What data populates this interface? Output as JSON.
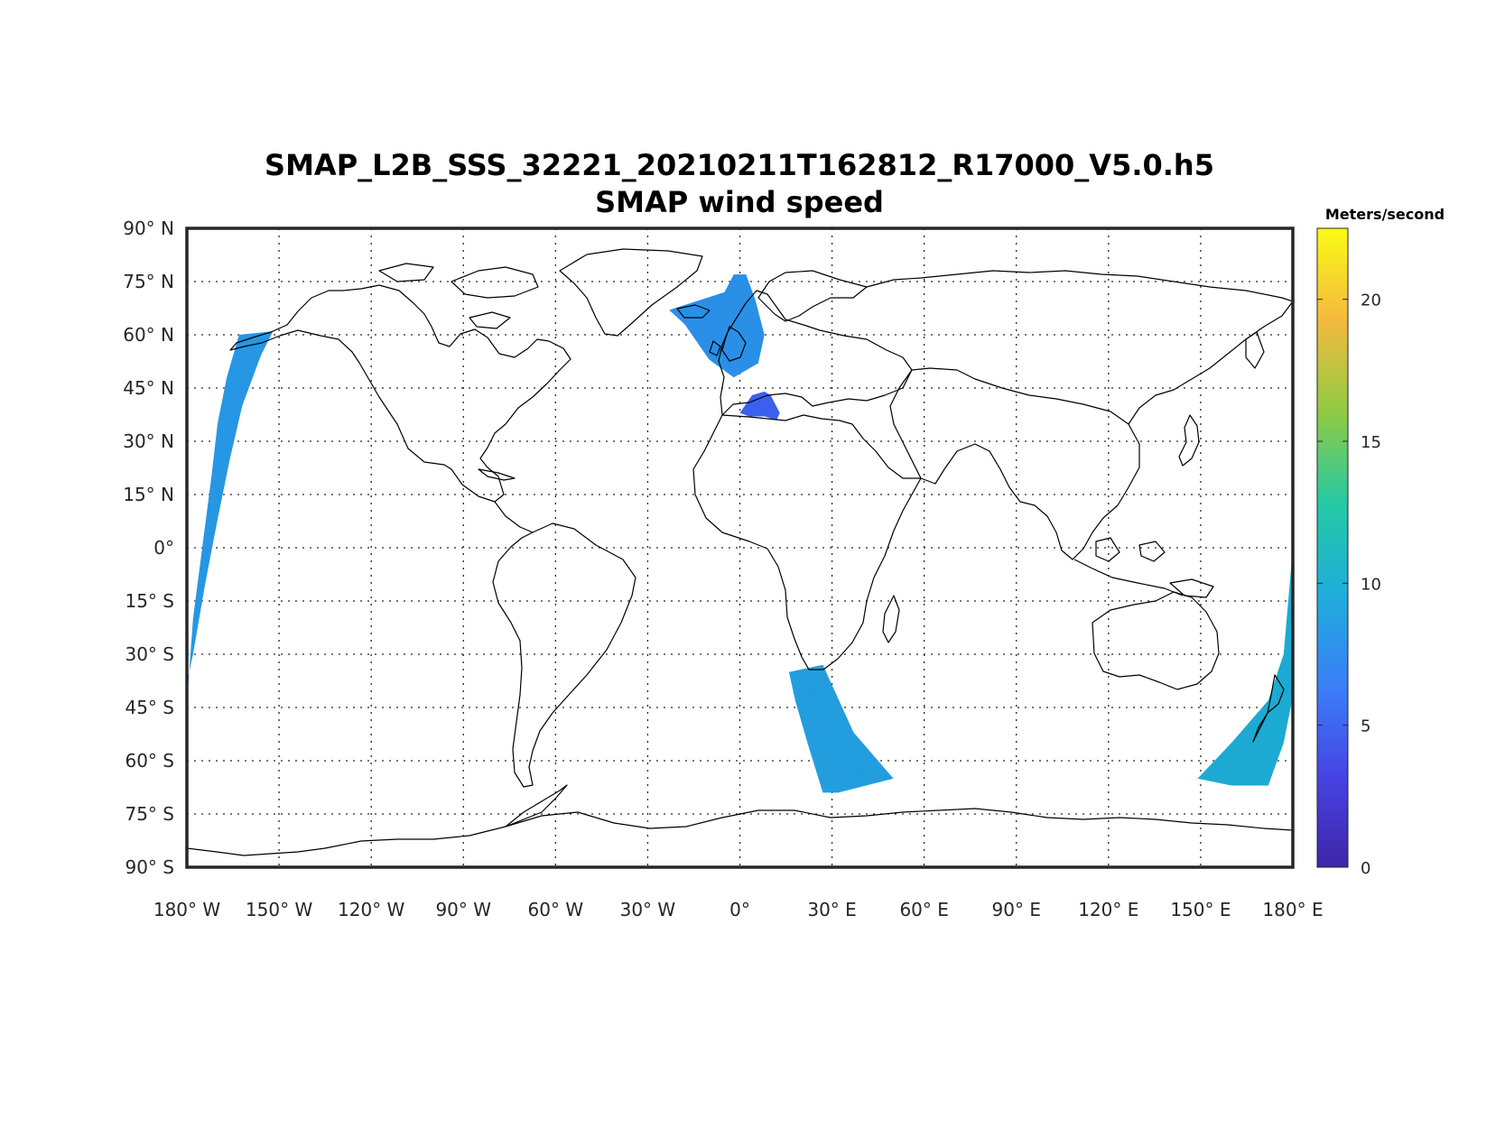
{
  "title": {
    "line1": "SMAP_L2B_SSS_32221_20210211T162812_R17000_V5.0.h5",
    "line2": "SMAP wind speed"
  },
  "colorbar": {
    "unit_label": "Meters/second",
    "ticks": [
      {
        "value": 0,
        "label": "0"
      },
      {
        "value": 5,
        "label": "5"
      },
      {
        "value": 10,
        "label": "10"
      },
      {
        "value": 15,
        "label": "15"
      },
      {
        "value": 20,
        "label": "20"
      }
    ],
    "min": 0,
    "max": 22.5,
    "colors": [
      "#3e26a8",
      "#4743e3",
      "#3a7ef8",
      "#1faeda",
      "#25c9a3",
      "#8fcb45",
      "#f6ba3d",
      "#f9fb14"
    ]
  },
  "chart_data": {
    "type": "heatmap",
    "projection": "equirectangular",
    "lon_range": [
      -180,
      180
    ],
    "lat_range": [
      -90,
      90
    ],
    "grid": true,
    "x_ticks": [
      {
        "value": -180,
        "label": "180° W"
      },
      {
        "value": -150,
        "label": "150° W"
      },
      {
        "value": -120,
        "label": "120° W"
      },
      {
        "value": -90,
        "label": "90° W"
      },
      {
        "value": -60,
        "label": "60° W"
      },
      {
        "value": -30,
        "label": "30° W"
      },
      {
        "value": 0,
        "label": "0°"
      },
      {
        "value": 30,
        "label": "30° E"
      },
      {
        "value": 60,
        "label": "60° E"
      },
      {
        "value": 90,
        "label": "90° E"
      },
      {
        "value": 120,
        "label": "120° E"
      },
      {
        "value": 150,
        "label": "150° E"
      },
      {
        "value": 180,
        "label": "180° E"
      }
    ],
    "y_ticks": [
      {
        "value": 90,
        "label": "90° N"
      },
      {
        "value": 75,
        "label": "75° N"
      },
      {
        "value": 60,
        "label": "60° N"
      },
      {
        "value": 45,
        "label": "45° N"
      },
      {
        "value": 30,
        "label": "30° N"
      },
      {
        "value": 15,
        "label": "15° N"
      },
      {
        "value": 0,
        "label": "0°"
      },
      {
        "value": -15,
        "label": "15° S"
      },
      {
        "value": -30,
        "label": "30° S"
      },
      {
        "value": -45,
        "label": "45° S"
      },
      {
        "value": -60,
        "label": "60° S"
      },
      {
        "value": -75,
        "label": "75° S"
      },
      {
        "value": -90,
        "label": "90° S"
      }
    ],
    "swaths": [
      {
        "name": "pacific-east",
        "polygon": [
          [
            -180,
            -44
          ],
          [
            -178,
            -20
          ],
          [
            -175,
            0
          ],
          [
            -172,
            20
          ],
          [
            -170,
            35
          ],
          [
            -167,
            48
          ],
          [
            -163,
            60
          ],
          [
            -152,
            61
          ],
          [
            -156,
            54
          ],
          [
            -162,
            40
          ],
          [
            -166,
            25
          ],
          [
            -170,
            8
          ],
          [
            -174,
            -10
          ],
          [
            -178,
            -30
          ],
          [
            -180,
            -38
          ]
        ],
        "mean_speed": 8.5
      },
      {
        "name": "north-atlantic",
        "polygon": [
          [
            -23,
            67
          ],
          [
            -5,
            72
          ],
          [
            -2,
            77
          ],
          [
            2,
            77
          ],
          [
            5,
            70
          ],
          [
            8,
            60
          ],
          [
            6,
            52
          ],
          [
            -2,
            48
          ],
          [
            -10,
            53
          ],
          [
            -18,
            63
          ]
        ],
        "mean_speed": 8
      },
      {
        "name": "mediterranean",
        "polygon": [
          [
            0,
            38
          ],
          [
            4,
            43
          ],
          [
            8,
            44
          ],
          [
            10,
            43
          ],
          [
            13,
            38
          ],
          [
            12,
            36
          ],
          [
            8,
            37
          ],
          [
            3,
            37
          ]
        ],
        "mean_speed": 5
      },
      {
        "name": "south-atlantic-indian",
        "polygon": [
          [
            16,
            -35
          ],
          [
            27,
            -33
          ],
          [
            37,
            -52
          ],
          [
            50,
            -65
          ],
          [
            32,
            -69
          ],
          [
            27,
            -69
          ],
          [
            22,
            -55
          ],
          [
            18,
            -43
          ]
        ],
        "mean_speed": 9
      },
      {
        "name": "southwest-pacific",
        "polygon": [
          [
            180,
            0
          ],
          [
            180,
            -42
          ],
          [
            177,
            -55
          ],
          [
            172,
            -67
          ],
          [
            160,
            -67
          ],
          [
            149,
            -65
          ],
          [
            160,
            -55
          ],
          [
            172,
            -43
          ],
          [
            177,
            -30
          ],
          [
            179,
            -10
          ]
        ],
        "mean_speed": 10
      }
    ]
  }
}
